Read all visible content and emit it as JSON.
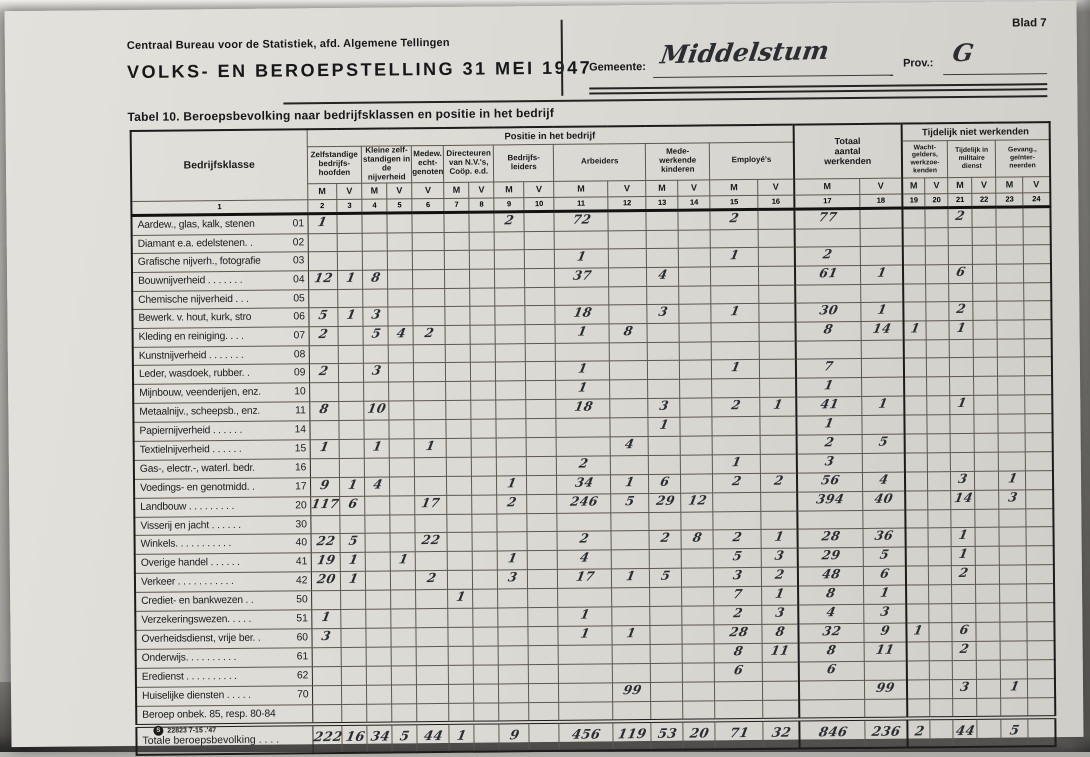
{
  "page": {
    "blad": "Blad 7",
    "org": "Centraal Bureau voor de Statistiek, afd. Algemene Tellingen",
    "title": "VOLKS- EN BEROEPSTELLING 31 MEI 1947",
    "gemeente_label": "Gemeente:",
    "gemeente_value": "Middelstum",
    "prov_label": "Prov.:",
    "prov_value": "G",
    "tabel_caption": "Tabel 10.  Beroepsbevolking naar bedrijfsklassen en positie in het bedrijf",
    "footer_mark": "22823 7-15 .'47"
  },
  "table": {
    "col1_header": "Bedrijfsklasse",
    "positie_header": "Positie in het bedrijf",
    "totaal_header": "Totaal\naantal\nwerkenden",
    "tijdelijk_header": "Tijdelijk niet werkenden",
    "positie_groups": [
      {
        "label": "Zelfstandige\nbedrijfs-\nhoofden",
        "span": 2
      },
      {
        "label": "Kleine zelf-\nstandigen in\nde nijverheid",
        "span": 2
      },
      {
        "label": "Medew.\necht-\ngenoten",
        "span": 1
      },
      {
        "label": "Directeuren\nvan N.V.'s,\nCoöp. e.d.",
        "span": 2
      },
      {
        "label": "Bedrijfs-\nleiders",
        "span": 2
      },
      {
        "label": "Arbeiders",
        "span": 2
      },
      {
        "label": "Mede-\nwerkende\nkinderen",
        "span": 2
      },
      {
        "label": "Employé's",
        "span": 2
      }
    ],
    "tijdelijk_groups": [
      {
        "label": "Wacht-\ngelders,\nwerkzoe-\nkenden",
        "span": 2
      },
      {
        "label": "Tijdelijk in\nmilitaire\ndienst",
        "span": 2
      },
      {
        "label": "Gevang.,\ngeïnter-\nneerden",
        "span": 2
      }
    ],
    "mv_row": [
      "M",
      "V",
      "M",
      "V",
      "V",
      "M",
      "V",
      "M",
      "V",
      "M",
      "V",
      "M",
      "V",
      "M",
      "V",
      "M",
      "V",
      "M",
      "V",
      "M",
      "V",
      "M",
      "V"
    ],
    "number_row": [
      "1",
      "2",
      "3",
      "4",
      "5",
      "6",
      "7",
      "8",
      "9",
      "10",
      "11",
      "12",
      "13",
      "14",
      "15",
      "16",
      "17",
      "18",
      "19",
      "20",
      "21",
      "22",
      "23",
      "24"
    ],
    "rows": [
      {
        "code": "01",
        "label": "Aardew., glas, kalk, stenen",
        "cells": {
          "2": "1",
          "9": "2",
          "11": "72",
          "15": "2",
          "17": "77",
          "21": "2"
        }
      },
      {
        "code": "02",
        "label": "Diamant e.a. edelstenen. .",
        "cells": {}
      },
      {
        "code": "03",
        "label": "Grafische nijverh., fotografie",
        "cells": {
          "11": "1",
          "15": "1",
          "17": "2"
        }
      },
      {
        "code": "04",
        "label": "Bouwnijverheid . . . . . . .",
        "cells": {
          "2": "12",
          "3": "1",
          "4": "8",
          "11": "37",
          "13": "4",
          "17": "61",
          "18": "1",
          "21": "6"
        }
      },
      {
        "code": "05",
        "label": "Chemische nijverheid . . .",
        "cells": {}
      },
      {
        "code": "06",
        "label": "Bewerk. v. hout, kurk, stro",
        "cells": {
          "2": "5",
          "3": "1",
          "4": "3",
          "11": "18",
          "13": "3",
          "15": "1",
          "17": "30",
          "18": "1",
          "21": "2"
        }
      },
      {
        "code": "07",
        "label": "Kleding en reiniging. . . .",
        "cells": {
          "2": "2",
          "4": "5",
          "5": "4",
          "6": "2",
          "11": "1",
          "12": "8",
          "17": "8",
          "18": "14",
          "19": "1",
          "21": "1"
        }
      },
      {
        "code": "08",
        "label": "Kunstnijverheid . . . . . . .",
        "cells": {}
      },
      {
        "code": "09",
        "label": "Leder, wasdoek, rubber. .",
        "cells": {
          "2": "2",
          "4": "3",
          "11": "1",
          "15": "1",
          "17": "7"
        }
      },
      {
        "code": "10",
        "label": "Mijnbouw, veenderijen, enz.",
        "cells": {
          "11": "1",
          "17": "1"
        }
      },
      {
        "code": "11",
        "label": "Metaalnijv., scheepsb., enz.",
        "cells": {
          "2": "8",
          "4": "10",
          "11": "18",
          "13": "3",
          "15": "2",
          "16": "1",
          "17": "41",
          "18": "1",
          "21": "1"
        }
      },
      {
        "code": "14",
        "label": "Papiernijverheid . . . . . .",
        "cells": {
          "13": "1",
          "17": "1"
        }
      },
      {
        "code": "15",
        "label": "Textielnijverheid . . . . . .",
        "cells": {
          "2": "1",
          "4": "1",
          "6": "1",
          "12": "4",
          "17": "2",
          "18": "5"
        }
      },
      {
        "code": "16",
        "label": "Gas-, electr.-, waterl. bedr.",
        "cells": {
          "11": "2",
          "15": "1",
          "17": "3"
        }
      },
      {
        "code": "17",
        "label": "Voedings- en genotmidd. .",
        "cells": {
          "2": "9",
          "3": "1",
          "4": "4",
          "9": "1",
          "11": "34",
          "12": "1",
          "13": "6",
          "15": "2",
          "16": "2",
          "17": "56",
          "18": "4",
          "21": "3",
          "23": "1"
        }
      },
      {
        "code": "20",
        "label": "Landbouw . . . . . . . . .",
        "cells": {
          "2": "117",
          "3": "6",
          "6": "17",
          "9": "2",
          "11": "246",
          "12": "5",
          "13": "29",
          "14": "12",
          "17": "394",
          "18": "40",
          "21": "14",
          "23": "3"
        }
      },
      {
        "code": "30",
        "label": "Visserij en jacht . . . . . .",
        "cells": {}
      },
      {
        "code": "40",
        "label": "Winkels. . . . . . . . . . .",
        "cells": {
          "2": "22",
          "3": "5",
          "6": "22",
          "11": "2",
          "13": "2",
          "14": "8",
          "15": "2",
          "16": "1",
          "17": "28",
          "18": "36",
          "21": "1"
        }
      },
      {
        "code": "41",
        "label": "Overige handel . . . . . .",
        "cells": {
          "2": "19",
          "3": "1",
          "5": "1",
          "9": "1",
          "11": "4",
          "15": "5",
          "16": "3",
          "17": "29",
          "18": "5",
          "21": "1"
        }
      },
      {
        "code": "42",
        "label": "Verkeer . . . . . . . . . . .",
        "cells": {
          "2": "20",
          "3": "1",
          "6": "2",
          "9": "3",
          "11": "17",
          "12": "1",
          "13": "5",
          "15": "3",
          "16": "2",
          "17": "48",
          "18": "6",
          "21": "2"
        }
      },
      {
        "code": "50",
        "label": "Crediet- en bankwezen . .",
        "cells": {
          "7": "1",
          "15": "7",
          "16": "1",
          "17": "8",
          "18": "1"
        }
      },
      {
        "code": "51",
        "label": "Verzekeringswezen. . . . .",
        "cells": {
          "2": "1",
          "11": "1",
          "15": "2",
          "16": "3",
          "17": "4",
          "18": "3"
        }
      },
      {
        "code": "60",
        "label": "Overheidsdienst, vrije ber. .",
        "cells": {
          "2": "3",
          "11": "1",
          "12": "1",
          "15": "28",
          "16": "8",
          "17": "32",
          "18": "9",
          "19": "1",
          "21": "6"
        }
      },
      {
        "code": "61",
        "label": "Onderwijs. . . . . . . . . .",
        "cells": {
          "15": "8",
          "16": "11",
          "17": "8",
          "18": "11",
          "21": "2"
        }
      },
      {
        "code": "62",
        "label": "Eredienst . . . . . . . . . .",
        "cells": {
          "15": "6",
          "17": "6"
        }
      },
      {
        "code": "70",
        "label": "Huiselijke diensten . . . . .",
        "cells": {
          "12": "99",
          "18": "99",
          "21": "3",
          "23": "1"
        }
      },
      {
        "code": "",
        "label": "Beroep onbek. 85, resp. 80-84",
        "cells": {}
      }
    ],
    "totals_row": {
      "label": "Totale beroepsbevolking . . . .",
      "cells": {
        "2": "222",
        "3": "16",
        "4": "34",
        "5": "5",
        "6": "44",
        "7": "1",
        "9": "9",
        "11": "456",
        "12": "119",
        "13": "53",
        "14": "20",
        "15": "71",
        "16": "32",
        "17": "846",
        "18": "236",
        "19": "2",
        "21": "44",
        "23": "5"
      }
    }
  }
}
